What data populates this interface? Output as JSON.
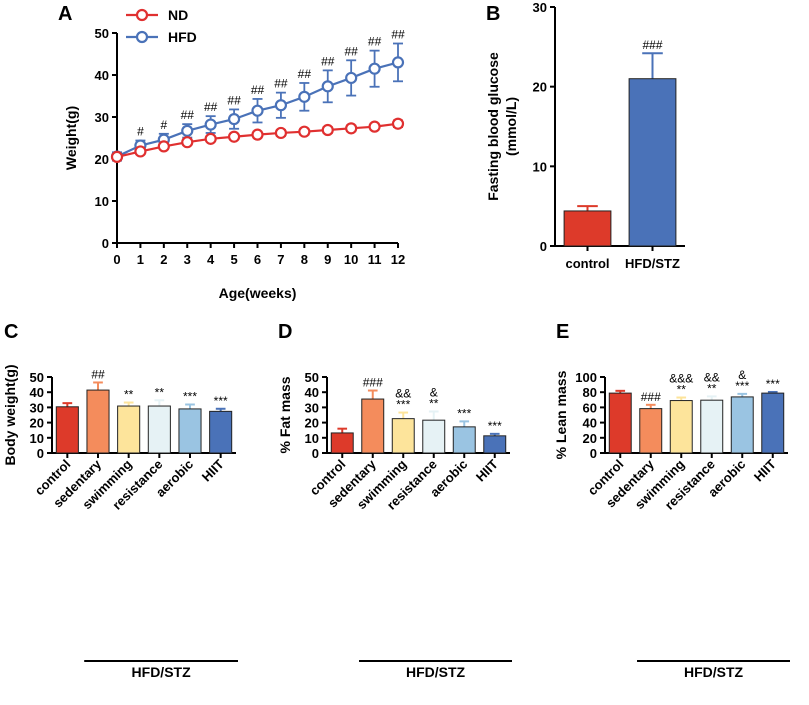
{
  "chart_data": [
    {
      "id": "A",
      "type": "line",
      "panel_label": "A",
      "xlabel": "Age(weeks)",
      "ylabel": "Weight(g)",
      "x": [
        0,
        1,
        2,
        3,
        4,
        5,
        6,
        7,
        8,
        9,
        10,
        11,
        12
      ],
      "xlim": [
        0,
        12
      ],
      "ylim": [
        0,
        50
      ],
      "yticks": [
        0,
        10,
        20,
        30,
        40,
        50
      ],
      "series": [
        {
          "name": "ND",
          "color": "#e03030",
          "values": [
            20.5,
            21.8,
            23.0,
            24.0,
            24.8,
            25.3,
            25.8,
            26.2,
            26.5,
            26.9,
            27.3,
            27.7,
            28.4
          ],
          "errors": [
            0.6,
            0.6,
            0.6,
            0.6,
            0.6,
            0.6,
            0.7,
            0.7,
            0.7,
            0.7,
            0.7,
            0.7,
            0.8
          ],
          "annotations": [
            "",
            "",
            "",
            "",
            "",
            "",
            "",
            "",
            "",
            "",
            "",
            "",
            ""
          ]
        },
        {
          "name": "HFD",
          "color": "#4a72b8",
          "values": [
            20.6,
            23.2,
            24.6,
            26.7,
            28.2,
            29.5,
            31.5,
            32.8,
            34.8,
            37.3,
            39.3,
            41.5,
            43.0
          ],
          "errors": [
            1.0,
            1.2,
            1.4,
            1.6,
            2.0,
            2.3,
            2.8,
            3.0,
            3.3,
            3.8,
            4.2,
            4.3,
            4.5
          ],
          "annotations": [
            "",
            "#",
            "#",
            "##",
            "##",
            "##",
            "##",
            "##",
            "##",
            "##",
            "##",
            "##",
            "##"
          ]
        }
      ]
    },
    {
      "id": "B",
      "type": "bar",
      "panel_label": "B",
      "title": "",
      "xlabel": "",
      "ylabel": "Fasting blood glucose (mmol/L)",
      "ylabel_lines": [
        "Fasting blood glucose",
        "(mmol/L)"
      ],
      "categories": [
        "control",
        "HFD/STZ"
      ],
      "values": [
        4.4,
        21.0
      ],
      "errors": [
        0.6,
        3.2
      ],
      "colors": [
        "#dd3a2a",
        "#4a72b8"
      ],
      "annotations": [
        "",
        "###"
      ],
      "ylim": [
        0,
        30
      ],
      "yticks": [
        0,
        10,
        20,
        30
      ]
    },
    {
      "id": "C",
      "type": "bar",
      "panel_label": "C",
      "xlabel": "",
      "ylabel": "Body weight(g)",
      "group_label": "HFD/STZ",
      "categories": [
        "control",
        "sedentary",
        "swimming",
        "resistance",
        "aerobic",
        "HIIT"
      ],
      "values": [
        30.4,
        41.4,
        30.9,
        30.9,
        29.0,
        27.4
      ],
      "errors": [
        2.4,
        5.0,
        2.3,
        3.8,
        2.9,
        1.7
      ],
      "colors": [
        "#dd3a2a",
        "#f48c5c",
        "#fde49b",
        "#e6f2f5",
        "#9ac4e2",
        "#4a72b8"
      ],
      "annotations": [
        [
          ""
        ],
        [
          "##"
        ],
        [
          "**"
        ],
        [
          "**"
        ],
        [
          "***"
        ],
        [
          "***"
        ]
      ],
      "ylim": [
        0,
        50
      ],
      "yticks": [
        0,
        10,
        20,
        30,
        40,
        50
      ]
    },
    {
      "id": "D",
      "type": "bar",
      "panel_label": "D",
      "xlabel": "",
      "ylabel": "% Fat mass",
      "group_label": "HFD/STZ",
      "categories": [
        "control",
        "sedentary",
        "swimming",
        "resistance",
        "aerobic",
        "HIIT"
      ],
      "values": [
        13.2,
        35.5,
        22.6,
        21.6,
        17.2,
        11.3
      ],
      "errors": [
        2.8,
        5.6,
        4.0,
        5.7,
        3.6,
        1.3
      ],
      "colors": [
        "#dd3a2a",
        "#f48c5c",
        "#fde49b",
        "#e6f2f5",
        "#9ac4e2",
        "#4a72b8"
      ],
      "annotations": [
        [
          ""
        ],
        [
          "###"
        ],
        [
          "&&",
          "***"
        ],
        [
          "&",
          "**"
        ],
        [
          "***"
        ],
        [
          "***"
        ]
      ],
      "ylim": [
        0,
        50
      ],
      "yticks": [
        0,
        10,
        20,
        30,
        40,
        50
      ]
    },
    {
      "id": "E",
      "type": "bar",
      "panel_label": "E",
      "xlabel": "",
      "ylabel": "% Lean mass",
      "group_label": "HFD/STZ",
      "categories": [
        "control",
        "sedentary",
        "swimming",
        "resistance",
        "aerobic",
        "HIIT"
      ],
      "values": [
        78.8,
        58.4,
        69.0,
        69.5,
        73.8,
        78.8
      ],
      "errors": [
        3.0,
        5.0,
        4.0,
        5.0,
        4.0,
        1.5
      ],
      "colors": [
        "#dd3a2a",
        "#f48c5c",
        "#fde49b",
        "#e6f2f5",
        "#9ac4e2",
        "#4a72b8"
      ],
      "annotations": [
        [
          ""
        ],
        [
          "###"
        ],
        [
          "&&&",
          "**"
        ],
        [
          "&&",
          "**"
        ],
        [
          "&",
          "***"
        ],
        [
          "***"
        ]
      ],
      "ylim": [
        0,
        100
      ],
      "yticks": [
        0,
        20,
        40,
        60,
        80,
        100
      ]
    }
  ]
}
